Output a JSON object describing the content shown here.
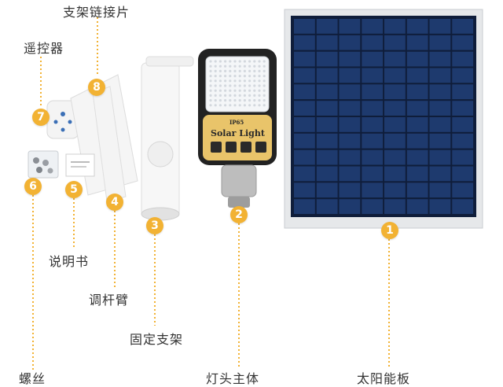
{
  "colors": {
    "accent": "#f2b233",
    "panel_cell": "#1e3a6e",
    "lamp_gold": "#e9c46a",
    "lamp_body": "#222222"
  },
  "lamp": {
    "rating": "IP65",
    "brand": "Solar Light"
  },
  "parts": [
    {
      "num": "1",
      "label": "太阳能板"
    },
    {
      "num": "2",
      "label": "灯头主体"
    },
    {
      "num": "3",
      "label": "固定支架"
    },
    {
      "num": "4",
      "label": "调杆臂"
    },
    {
      "num": "5",
      "label": "说明书"
    },
    {
      "num": "6",
      "label": "螺丝"
    },
    {
      "num": "7",
      "label": "遥控器"
    },
    {
      "num": "8",
      "label": "支架链接片"
    }
  ]
}
